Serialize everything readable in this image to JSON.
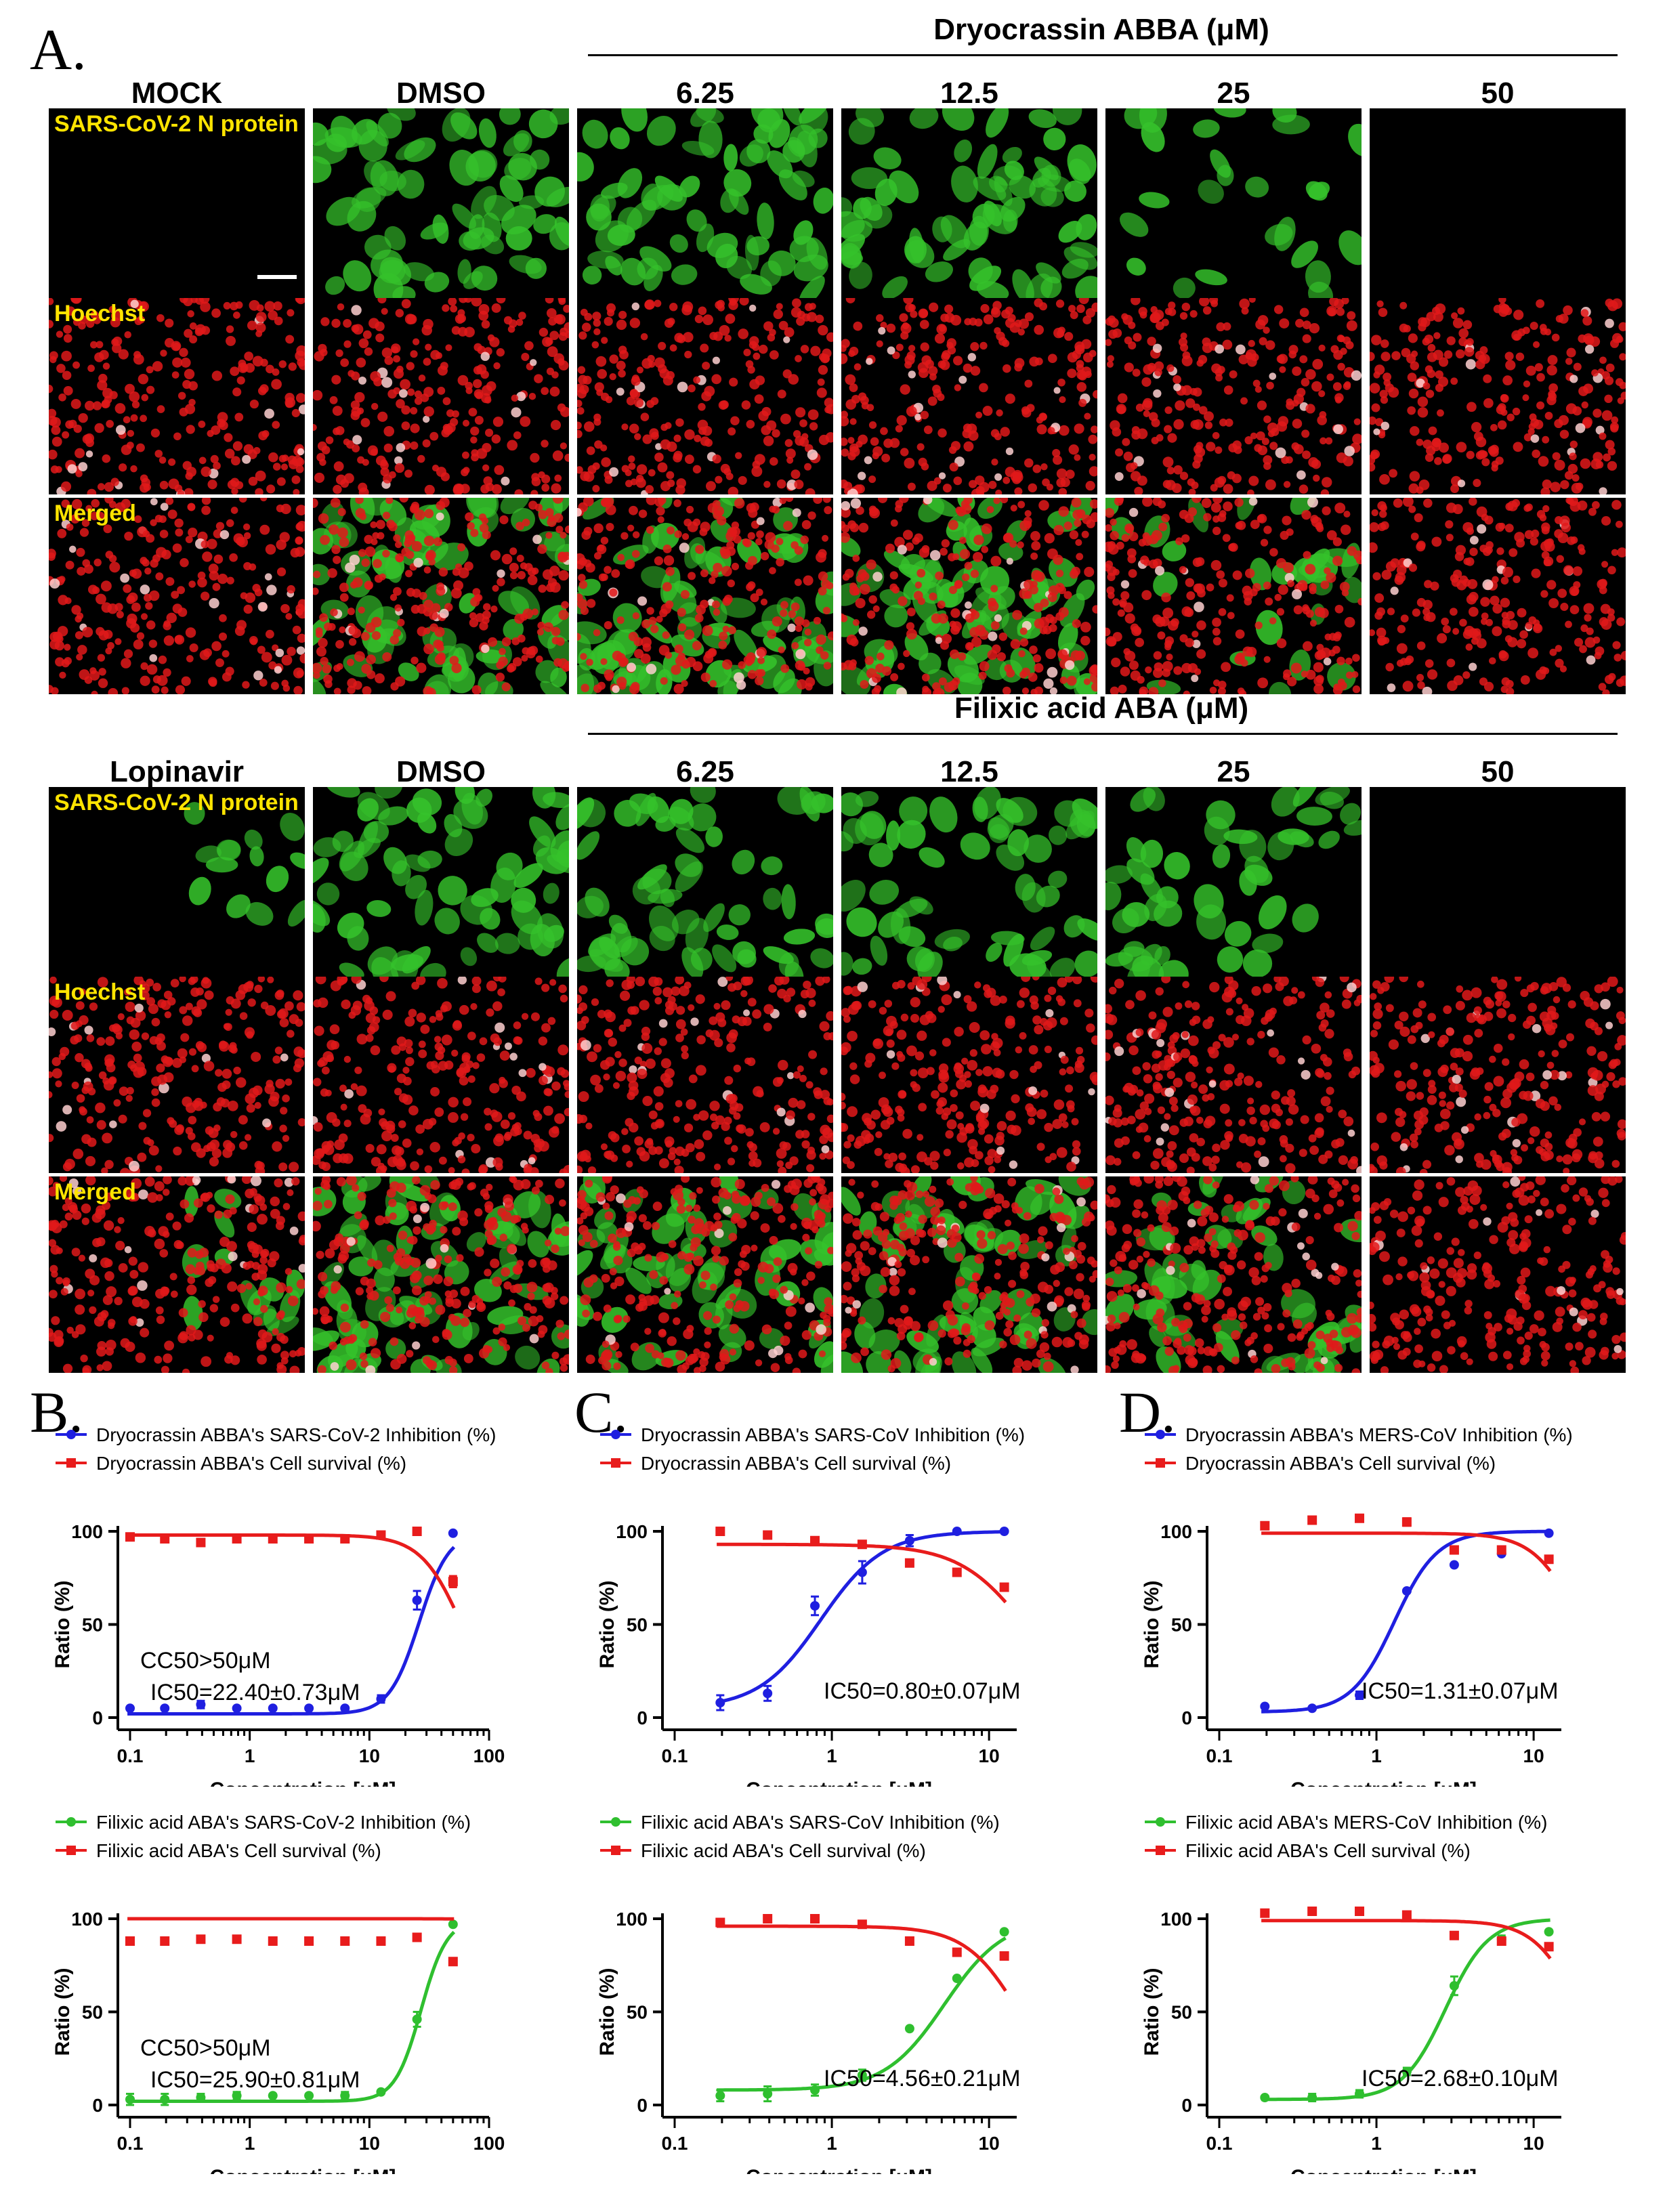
{
  "panels": {
    "A": "A.",
    "B": "B.",
    "C": "C.",
    "D": "D."
  },
  "microscopy": {
    "rows_labels": {
      "n": "SARS-CoV-2 N protein",
      "h": "Hoechst",
      "m": "Merged"
    },
    "groups": [
      {
        "title": "Dryocrassin ABBA (μM)",
        "columns": [
          "MOCK",
          "DMSO",
          "6.25",
          "12.5",
          "25",
          "50"
        ]
      },
      {
        "title": "Filixic acid ABA (μM)",
        "columns": [
          "Lopinavir",
          "DMSO",
          "6.25",
          "12.5",
          "25",
          "50"
        ]
      }
    ],
    "green_density": [
      [
        0,
        1,
        1,
        1,
        0.35,
        0
      ],
      [
        0.15,
        1,
        0.85,
        0.85,
        0.7,
        0
      ]
    ],
    "colors": {
      "green": "#35c22b",
      "red": "#e0191a",
      "label": "#ffe400"
    }
  },
  "chart_data": [
    {
      "type": "line",
      "panel": "B",
      "x_scale": "log",
      "xlim": [
        0.1,
        100
      ],
      "ylim": [
        0,
        100
      ],
      "xticks": [
        "0.1",
        "1",
        "10",
        "100"
      ],
      "yticks": [
        "0",
        "50",
        "100"
      ],
      "xlabel": "Concentration [μM]",
      "ylabel": "Ratio (%)",
      "series": [
        {
          "name": "Dryocrassin ABBA's SARS-CoV-2 Inhibition (%)",
          "color": "#1f1fe0",
          "marker": "circle",
          "x": [
            0.1,
            0.195,
            0.39,
            0.78,
            1.56,
            3.125,
            6.25,
            12.5,
            25,
            50
          ],
          "y": [
            5,
            5,
            7,
            5,
            5,
            5,
            5,
            10,
            63,
            99
          ],
          "err": [
            0,
            0,
            2,
            0,
            0,
            0,
            0,
            2,
            5,
            0
          ],
          "ec50": 26,
          "hill": 3.5,
          "bottom": 2,
          "top": 100
        },
        {
          "name": "Dryocrassin ABBA's Cell survival (%)",
          "color": "#e81c1c",
          "marker": "square",
          "x": [
            0.1,
            0.195,
            0.39,
            0.78,
            1.56,
            3.125,
            6.25,
            12.5,
            25,
            50
          ],
          "y": [
            97,
            96,
            94,
            96,
            96,
            96,
            96,
            98,
            100,
            73
          ],
          "err": [
            0,
            0,
            0,
            0,
            0,
            0,
            0,
            0,
            0,
            3
          ],
          "ec50": 60,
          "hill": 2.5,
          "bottom": 0,
          "top": 98
        }
      ],
      "annotations": [
        {
          "text": "CC50>50μM"
        },
        {
          "text": "IC50=22.40±0.73μM"
        }
      ]
    },
    {
      "type": "line",
      "panel": "C",
      "x_scale": "log",
      "xlim": [
        0.1,
        15
      ],
      "ylim": [
        0,
        100
      ],
      "xticks": [
        "0.1",
        "1",
        "10"
      ],
      "yticks": [
        "0",
        "50",
        "100"
      ],
      "xlabel": "Concentration [μM]",
      "ylabel": "Ratio (%)",
      "series": [
        {
          "name": "Dryocrassin ABBA's SARS-CoV Inhibition (%)",
          "color": "#1f1fe0",
          "marker": "circle",
          "x": [
            0.195,
            0.39,
            0.78,
            1.56,
            3.125,
            6.25,
            12.5
          ],
          "y": [
            8,
            13,
            60,
            78,
            95,
            100,
            100
          ],
          "err": [
            4,
            4,
            5,
            6,
            3,
            0,
            0
          ],
          "ec50": 0.85,
          "hill": 2.2,
          "bottom": 5,
          "top": 100
        },
        {
          "name": "Dryocrassin ABBA's Cell survival (%)",
          "color": "#e81c1c",
          "marker": "square",
          "x": [
            0.195,
            0.39,
            0.78,
            1.56,
            3.125,
            6.25,
            12.5
          ],
          "y": [
            100,
            98,
            95,
            93,
            83,
            78,
            70
          ],
          "err": [
            0,
            0,
            0,
            0,
            0,
            0,
            2
          ],
          "ec50": 18,
          "hill": 2,
          "bottom": 0,
          "top": 93
        }
      ],
      "annotations": [
        {
          "text": "IC50=0.80±0.07μM"
        }
      ]
    },
    {
      "type": "line",
      "panel": "D",
      "x_scale": "log",
      "xlim": [
        0.1,
        15
      ],
      "ylim": [
        0,
        100
      ],
      "xticks": [
        "0.1",
        "1",
        "10"
      ],
      "yticks": [
        "0",
        "50",
        "100"
      ],
      "xlabel": "Concentration [μM]",
      "ylabel": "Ratio (%)",
      "series": [
        {
          "name": "Dryocrassin ABBA's MERS-CoV Inhibition (%)",
          "color": "#1f1fe0",
          "marker": "circle",
          "x": [
            0.195,
            0.39,
            0.78,
            1.56,
            3.125,
            6.25,
            12.5
          ],
          "y": [
            6,
            5,
            12,
            68,
            82,
            88,
            99
          ],
          "err": [
            0,
            0,
            2,
            0,
            0,
            0,
            0
          ],
          "ec50": 1.3,
          "hill": 3.2,
          "bottom": 3,
          "top": 100
        },
        {
          "name": "Dryocrassin ABBA's Cell survival (%)",
          "color": "#e81c1c",
          "marker": "square",
          "x": [
            0.195,
            0.39,
            0.78,
            1.56,
            3.125,
            6.25,
            12.5
          ],
          "y": [
            103,
            106,
            107,
            105,
            90,
            90,
            85
          ],
          "err": [
            0,
            0,
            0,
            2,
            0,
            0,
            0
          ],
          "ec50": 20,
          "hill": 3,
          "bottom": 0,
          "top": 99
        }
      ],
      "annotations": [
        {
          "text": "IC50=1.31±0.07μM"
        }
      ]
    },
    {
      "type": "line",
      "panel": "B",
      "x_scale": "log",
      "xlim": [
        0.1,
        100
      ],
      "ylim": [
        0,
        100
      ],
      "xticks": [
        "0.1",
        "1",
        "10",
        "100"
      ],
      "yticks": [
        "0",
        "50",
        "100"
      ],
      "xlabel": "Concentration [μM]",
      "ylabel": "Ratio (%)",
      "series": [
        {
          "name": "Filixic acid ABA's SARS-CoV-2 Inhibition (%)",
          "color": "#2fbf2f",
          "marker": "circle",
          "x": [
            0.1,
            0.195,
            0.39,
            0.78,
            1.56,
            3.125,
            6.25,
            12.5,
            25,
            50
          ],
          "y": [
            3,
            3,
            4,
            5,
            5,
            5,
            5,
            7,
            46,
            97
          ],
          "err": [
            3,
            3,
            2,
            2,
            0,
            0,
            2,
            0,
            4,
            0
          ],
          "ec50": 27,
          "hill": 4,
          "bottom": 2,
          "top": 100
        },
        {
          "name": "Filixic acid ABA's Cell survival (%)",
          "color": "#e81c1c",
          "marker": "square",
          "x": [
            0.1,
            0.195,
            0.39,
            0.78,
            1.56,
            3.125,
            6.25,
            12.5,
            25,
            50
          ],
          "y": [
            88,
            88,
            89,
            89,
            88,
            88,
            88,
            88,
            90,
            77
          ],
          "err": [
            0,
            0,
            0,
            0,
            0,
            0,
            0,
            0,
            0,
            0
          ],
          "ec50": 500,
          "hill": 3,
          "bottom": 0,
          "top": 100
        }
      ],
      "annotations": [
        {
          "text": "CC50>50μM"
        },
        {
          "text": "IC50=25.90±0.81μM"
        }
      ]
    },
    {
      "type": "line",
      "panel": "C",
      "x_scale": "log",
      "xlim": [
        0.1,
        15
      ],
      "ylim": [
        0,
        100
      ],
      "xticks": [
        "0.1",
        "1",
        "10"
      ],
      "yticks": [
        "0",
        "50",
        "100"
      ],
      "xlabel": "Concentration [μM]",
      "ylabel": "Ratio (%)",
      "series": [
        {
          "name": "Filixic acid ABA's SARS-CoV Inhibition (%)",
          "color": "#2fbf2f",
          "marker": "circle",
          "x": [
            0.195,
            0.39,
            0.78,
            1.56,
            3.125,
            6.25,
            12.5
          ],
          "y": [
            5,
            6,
            8,
            16,
            41,
            68,
            93
          ],
          "err": [
            3,
            4,
            3,
            3,
            0,
            0,
            0
          ],
          "ec50": 5.2,
          "hill": 2.3,
          "bottom": 8,
          "top": 100
        },
        {
          "name": "Filixic acid ABA's Cell survival (%)",
          "color": "#e81c1c",
          "marker": "square",
          "x": [
            0.195,
            0.39,
            0.78,
            1.56,
            3.125,
            6.25,
            12.5
          ],
          "y": [
            98,
            100,
            100,
            97,
            88,
            82,
            80
          ],
          "err": [
            0,
            0,
            0,
            0,
            0,
            0,
            0
          ],
          "ec50": 16,
          "hill": 2.5,
          "bottom": 0,
          "top": 96
        }
      ],
      "annotations": [
        {
          "text": "IC50=4.56±0.21μM"
        }
      ]
    },
    {
      "type": "line",
      "panel": "D",
      "x_scale": "log",
      "xlim": [
        0.1,
        15
      ],
      "ylim": [
        0,
        100
      ],
      "xticks": [
        "0.1",
        "1",
        "10"
      ],
      "yticks": [
        "0",
        "50",
        "100"
      ],
      "xlabel": "Concentration [μM]",
      "ylabel": "Ratio (%)",
      "series": [
        {
          "name": "Filixic acid ABA's MERS-CoV Inhibition (%)",
          "color": "#2fbf2f",
          "marker": "circle",
          "x": [
            0.195,
            0.39,
            0.78,
            1.56,
            3.125,
            6.25,
            12.5
          ],
          "y": [
            4,
            4,
            6,
            18,
            64,
            89,
            93
          ],
          "err": [
            0,
            2,
            2,
            2,
            5,
            2,
            0
          ],
          "ec50": 2.75,
          "hill": 3.2,
          "bottom": 3,
          "top": 100
        },
        {
          "name": "Filixic acid ABA's Cell survival (%)",
          "color": "#e81c1c",
          "marker": "square",
          "x": [
            0.195,
            0.39,
            0.78,
            1.56,
            3.125,
            6.25,
            12.5
          ],
          "y": [
            103,
            104,
            104,
            102,
            91,
            88,
            85
          ],
          "err": [
            0,
            0,
            0,
            0,
            0,
            0,
            0
          ],
          "ec50": 20,
          "hill": 3,
          "bottom": 0,
          "top": 99
        }
      ],
      "annotations": [
        {
          "text": "IC50=2.68±0.10μM"
        }
      ]
    }
  ]
}
